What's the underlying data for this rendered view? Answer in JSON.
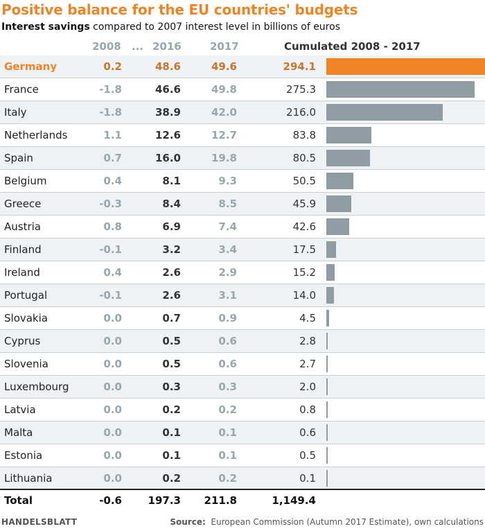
{
  "title": "Positive balance for the EU countries' budgets",
  "subtitle_bold": "Interest savings",
  "subtitle_rest": "compared to 2007 interest level in billions of euros",
  "headers": {
    "c2008": "2008",
    "ellipsis": "...",
    "c2016": "2016",
    "c2017": "2017",
    "cum": "Cumulated 2008 - 2017"
  },
  "colors": {
    "highlight": "#ef8424",
    "bar": "#8f9ca4",
    "header": "#98a6ae",
    "alt_row": "#eef2f5"
  },
  "chart_data": {
    "type": "table",
    "title": "Positive balance for the EU countries' budgets",
    "subtitle": "Interest savings compared to 2007 interest level in billions of euros",
    "columns": [
      "2008",
      "...",
      "2016",
      "2017",
      "Cumulated 2008 - 2017"
    ],
    "bar_series": "Cumulated 2008 - 2017",
    "bar_max": 294.1,
    "highlight": "Germany",
    "rows": [
      {
        "country": "Germany",
        "y2008": "0.2",
        "y2016": "48.6",
        "y2017": "49.6",
        "cum": "294.1",
        "cum_value": 294.1
      },
      {
        "country": "France",
        "y2008": "-1.8",
        "y2016": "46.6",
        "y2017": "49.8",
        "cum": "275.3",
        "cum_value": 275.3
      },
      {
        "country": "Italy",
        "y2008": "-1.8",
        "y2016": "38.9",
        "y2017": "42.0",
        "cum": "216.0",
        "cum_value": 216.0
      },
      {
        "country": "Netherlands",
        "y2008": "1.1",
        "y2016": "12.6",
        "y2017": "12.7",
        "cum": "83.8",
        "cum_value": 83.8
      },
      {
        "country": "Spain",
        "y2008": "0.7",
        "y2016": "16.0",
        "y2017": "19.8",
        "cum": "80.5",
        "cum_value": 80.5
      },
      {
        "country": "Belgium",
        "y2008": "0.4",
        "y2016": "8.1",
        "y2017": "9.3",
        "cum": "50.5",
        "cum_value": 50.5
      },
      {
        "country": "Greece",
        "y2008": "-0.3",
        "y2016": "8.4",
        "y2017": "8.5",
        "cum": "45.9",
        "cum_value": 45.9
      },
      {
        "country": "Austria",
        "y2008": "0.8",
        "y2016": "6.9",
        "y2017": "7.4",
        "cum": "42.6",
        "cum_value": 42.6
      },
      {
        "country": "Finland",
        "y2008": "-0.1",
        "y2016": "3.2",
        "y2017": "3.4",
        "cum": "17.5",
        "cum_value": 17.5
      },
      {
        "country": "Ireland",
        "y2008": "0.4",
        "y2016": "2.6",
        "y2017": "2.9",
        "cum": "15.2",
        "cum_value": 15.2
      },
      {
        "country": "Portugal",
        "y2008": "-0.1",
        "y2016": "2.6",
        "y2017": "3.1",
        "cum": "14.0",
        "cum_value": 14.0
      },
      {
        "country": "Slovakia",
        "y2008": "0.0",
        "y2016": "0.7",
        "y2017": "0.9",
        "cum": "4.5",
        "cum_value": 4.5
      },
      {
        "country": "Cyprus",
        "y2008": "0.0",
        "y2016": "0.5",
        "y2017": "0.6",
        "cum": "2.8",
        "cum_value": 2.8
      },
      {
        "country": "Slovenia",
        "y2008": "0.0",
        "y2016": "0.5",
        "y2017": "0.6",
        "cum": "2.7",
        "cum_value": 2.7
      },
      {
        "country": "Luxembourg",
        "y2008": "0.0",
        "y2016": "0.3",
        "y2017": "0.3",
        "cum": "2.0",
        "cum_value": 2.0
      },
      {
        "country": "Latvia",
        "y2008": "0.0",
        "y2016": "0.2",
        "y2017": "0.2",
        "cum": "0.8",
        "cum_value": 0.8
      },
      {
        "country": "Malta",
        "y2008": "0.0",
        "y2016": "0.1",
        "y2017": "0.1",
        "cum": "0.6",
        "cum_value": 0.6
      },
      {
        "country": "Estonia",
        "y2008": "0.0",
        "y2016": "0.1",
        "y2017": "0.1",
        "cum": "0.5",
        "cum_value": 0.5
      },
      {
        "country": "Lithuania",
        "y2008": "0.0",
        "y2016": "0.2",
        "y2017": "0.2",
        "cum": "0.1",
        "cum_value": 0.1
      }
    ],
    "total": {
      "label": "Total",
      "y2008": "-0.6",
      "y2016": "197.3",
      "y2017": "211.8",
      "cum": "1,149.4"
    }
  },
  "footer": {
    "brand": "HANDELSBLATT",
    "source_label": "Source:",
    "source_text": "European Commission (Autumn 2017 Estimate), own calculations"
  }
}
